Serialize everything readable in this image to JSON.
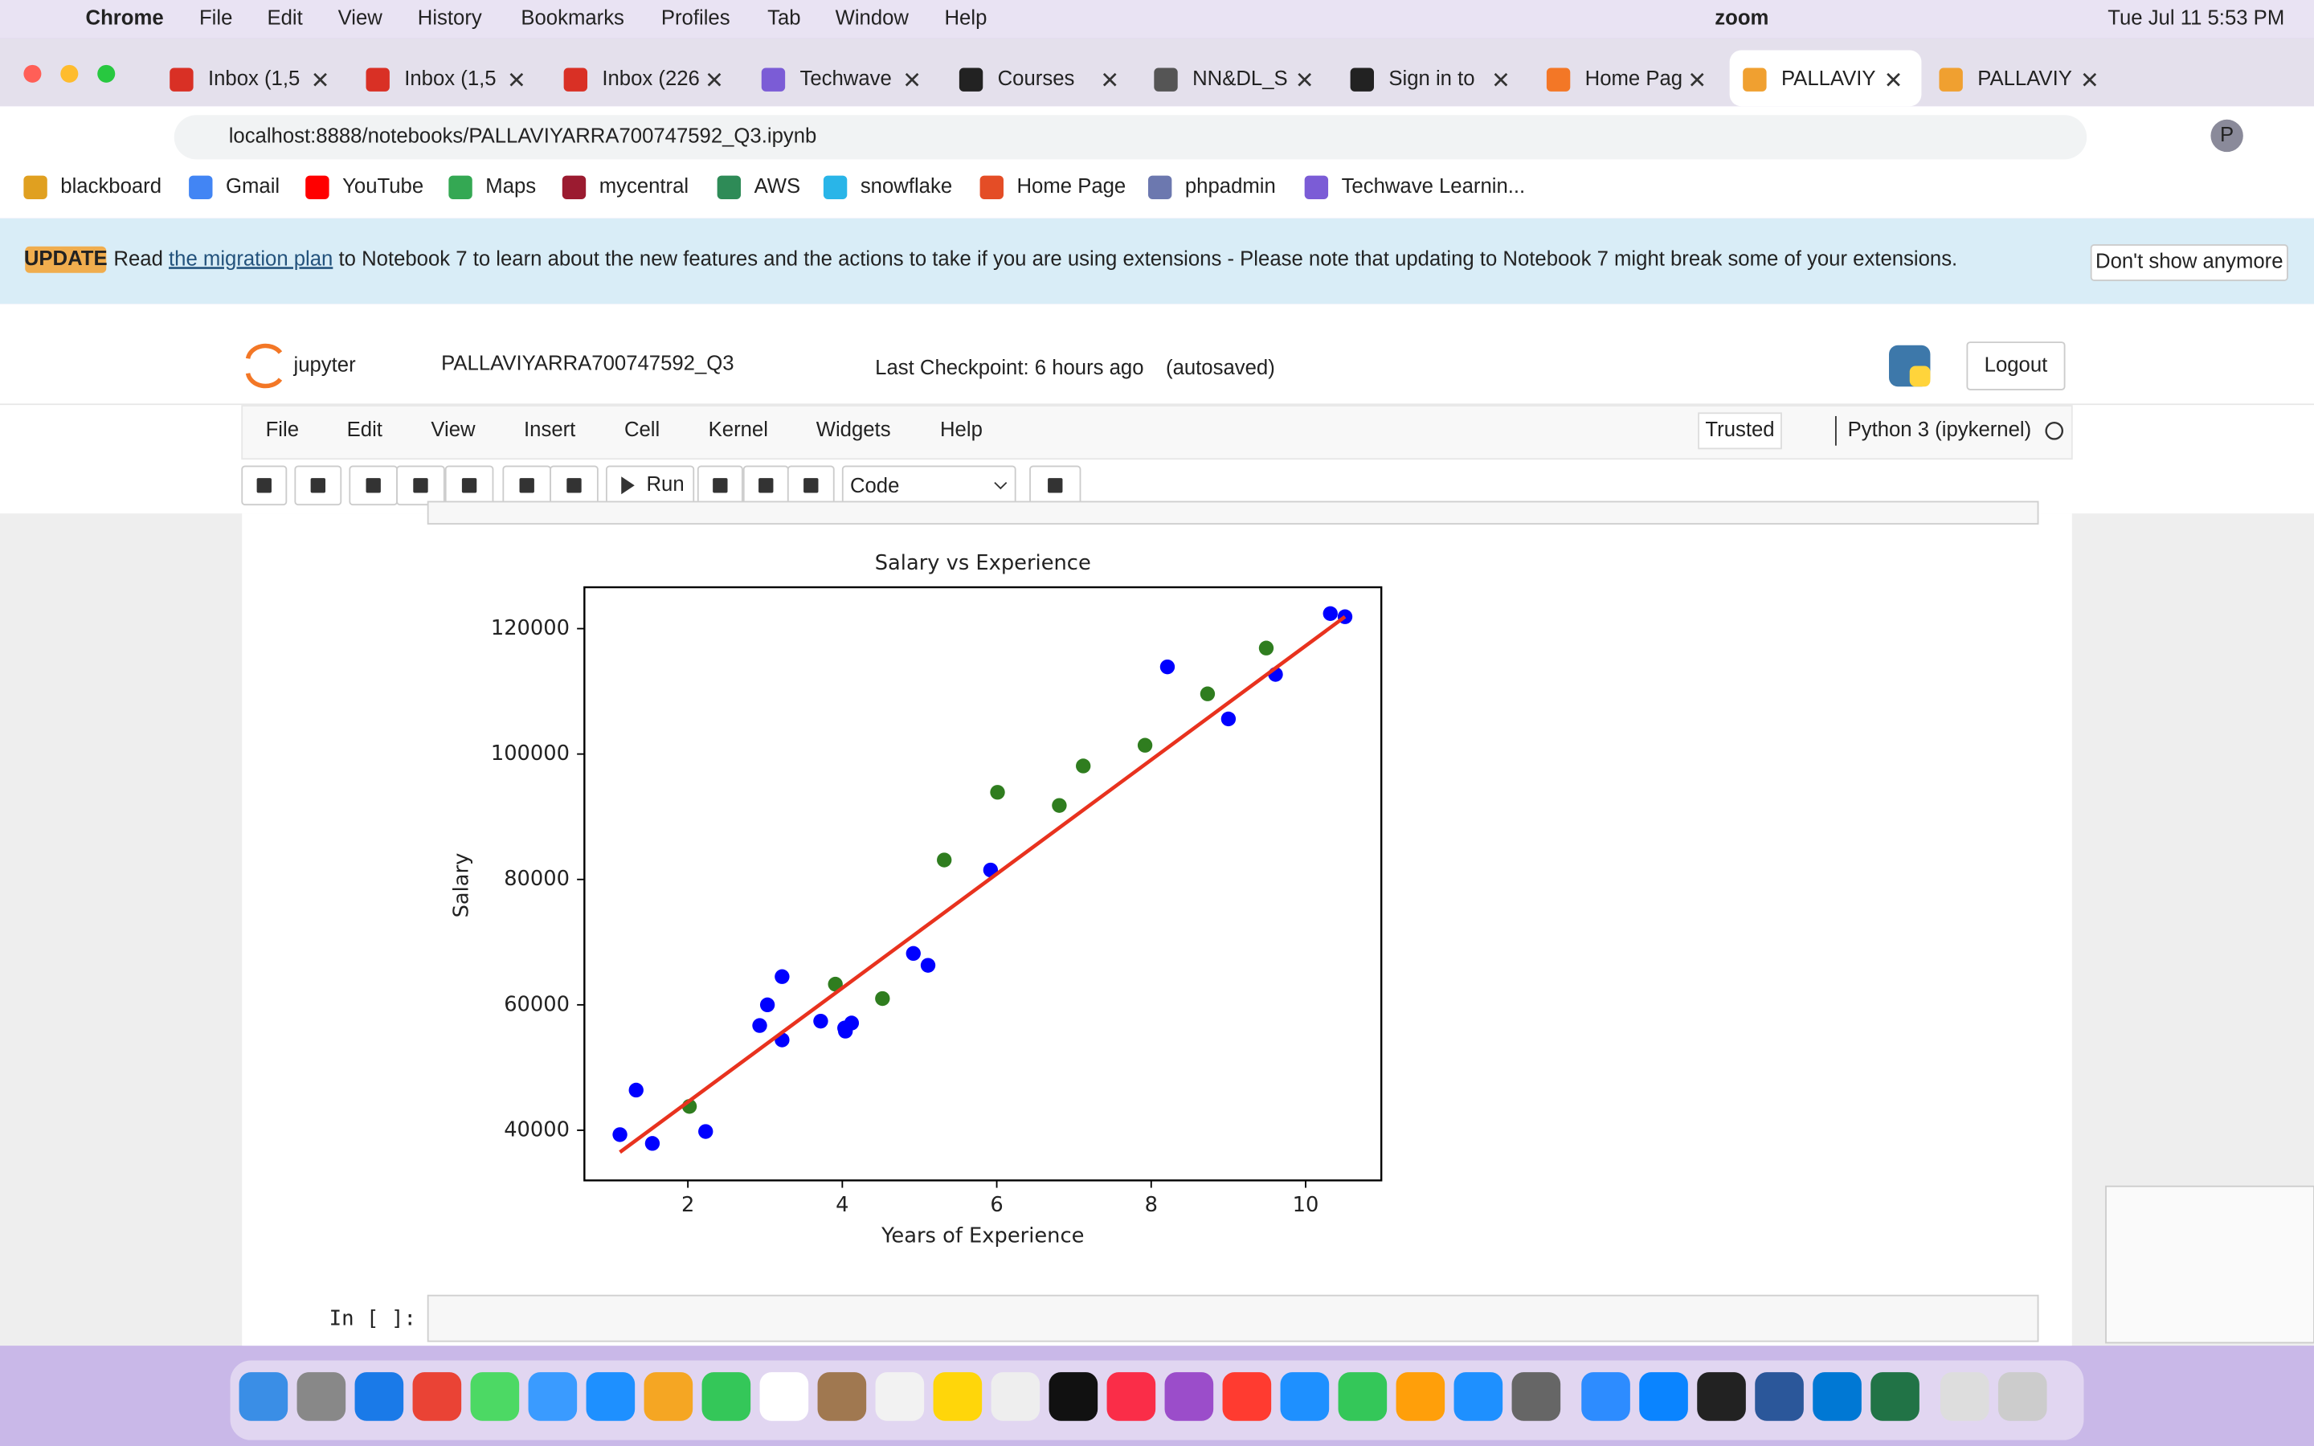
{
  "mac_menu": {
    "app": "Chrome",
    "items": [
      "File",
      "Edit",
      "View",
      "History",
      "Bookmarks",
      "Profiles",
      "Tab",
      "Window",
      "Help"
    ],
    "zoom": "zoom",
    "datetime": "Tue Jul 11  5:53 PM"
  },
  "tabs": [
    "Inbox (1,5",
    "Inbox (1,5",
    "Inbox (226",
    "Techwave",
    "Courses",
    "NN&DL_S",
    "Sign in to",
    "Home Pag",
    "PALLAVIY",
    "PALLAVIY"
  ],
  "address": "localhost:8888/notebooks/PALLAVIYARRA700747592_Q3.ipynb",
  "profile": "P",
  "bookmarks": [
    "blackboard",
    "Gmail",
    "YouTube",
    "Maps",
    "mycentral",
    "AWS",
    "snowflake",
    "Home Page",
    "phpadmin",
    "Techwave Learnin..."
  ],
  "banner": {
    "badge": "UPDATE",
    "pre": "Read",
    "link": "the migration plan",
    "post": "to Notebook 7 to learn about the new features and the actions to take if you are using extensions - Please note that updating to Notebook 7 might break some of your extensions.",
    "button": "Don't show anymore"
  },
  "notebook": {
    "logo": "jupyter",
    "name": "PALLAVIYARRA700747592_Q3",
    "checkpoint": "Last Checkpoint: 6 hours ago",
    "autosave": "(autosaved)",
    "logout": "Logout",
    "menus": [
      "File",
      "Edit",
      "View",
      "Insert",
      "Cell",
      "Kernel",
      "Widgets",
      "Help"
    ],
    "trusted": "Trusted",
    "kernel": "Python 3 (ipykernel)",
    "run": "Run",
    "cell_type": "Code",
    "prompt": "In [ ]:"
  },
  "chart_data": {
    "type": "scatter",
    "title": "Salary vs Experience",
    "x_label": "Years of Experience",
    "y_label": "Salary",
    "xlim": [
      0.66,
      10.98
    ],
    "ylim": [
      32000,
      126600
    ],
    "xticks": [
      2,
      4,
      6,
      8,
      10
    ],
    "yticks": [
      40000,
      60000,
      80000,
      100000,
      120000
    ],
    "series": [
      {
        "type": "scatter",
        "color": "#0000ff",
        "x": [
          1.12,
          1.33,
          1.54,
          2.23,
          2.93,
          3.03,
          3.22,
          3.22,
          3.72,
          4.03,
          4.04,
          4.12,
          4.92,
          5.11,
          5.92,
          8.21,
          9.0,
          9.61,
          10.32,
          10.51
        ],
        "values": [
          39300,
          46400,
          37900,
          39800,
          56700,
          60000,
          64500,
          54400,
          57400,
          56300,
          55800,
          57100,
          68200,
          66300,
          81500,
          113900,
          105600,
          112700,
          122400,
          121900
        ]
      },
      {
        "type": "scatter",
        "color": "#2f7d1f",
        "x": [
          2.02,
          3.91,
          4.52,
          5.32,
          6.01,
          6.81,
          7.12,
          7.92,
          8.73,
          9.49
        ],
        "values": [
          43800,
          63300,
          61000,
          83100,
          93900,
          91800,
          98100,
          101400,
          109600,
          116900
        ]
      },
      {
        "type": "line",
        "color": "#e8321e",
        "x": [
          1.12,
          10.51
        ],
        "values": [
          36500,
          121900
        ]
      }
    ]
  }
}
